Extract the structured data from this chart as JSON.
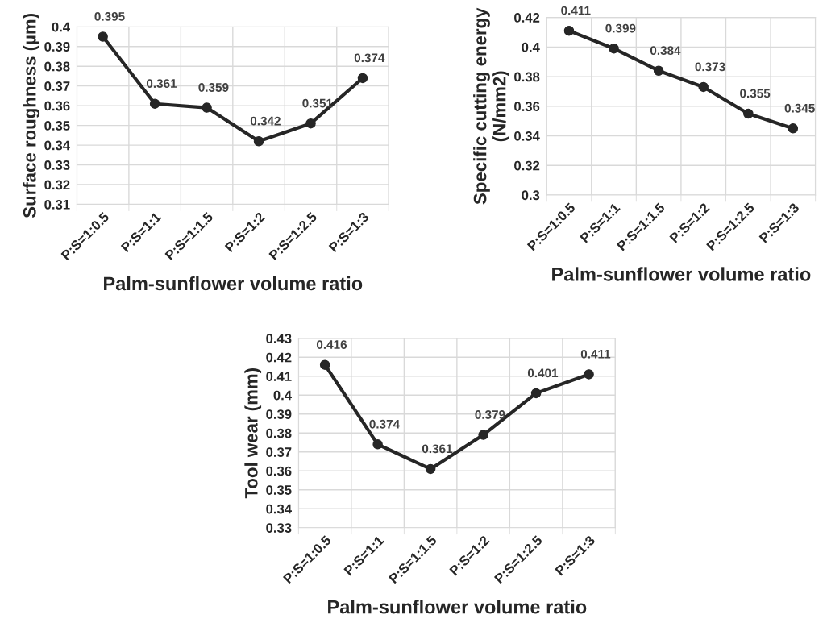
{
  "chart_data": [
    {
      "type": "line",
      "xlabel": "Palm-sunflower volume ratio",
      "ylabel": "Surface roughness (µm)",
      "categories": [
        "P:S=1:0.5",
        "P:S=1:1",
        "P:S=1:1.5",
        "P:S=1:2",
        "P:S=1:2.5",
        "P:S=1:3"
      ],
      "series": [
        {
          "color": "#262626",
          "values": [
            0.395,
            0.361,
            0.359,
            0.342,
            0.351,
            0.374
          ]
        }
      ],
      "ylim": [
        0.31,
        0.4
      ],
      "yticks": [
        0.31,
        0.32,
        0.33,
        0.34,
        0.35,
        0.36,
        0.37,
        0.38,
        0.39,
        0.4
      ],
      "grid": true,
      "marker": "circle",
      "line_style": "solid",
      "data_labels": true
    },
    {
      "type": "line",
      "xlabel": "Palm-sunflower volume ratio",
      "ylabel": "Specific cutting energy\n(N/mm2)",
      "categories": [
        "P:S=1:0.5",
        "P:S=1:1",
        "P:S=1:1.5",
        "P:S=1:2",
        "P:S=1:2.5",
        "P:S=1:3"
      ],
      "series": [
        {
          "color": "#262626",
          "values": [
            0.411,
            0.399,
            0.384,
            0.373,
            0.355,
            0.345
          ]
        }
      ],
      "ylim": [
        0.3,
        0.42
      ],
      "yticks": [
        0.3,
        0.32,
        0.34,
        0.36,
        0.38,
        0.4,
        0.42
      ],
      "grid": true,
      "marker": "circle",
      "line_style": "solid",
      "data_labels": true
    },
    {
      "type": "line",
      "xlabel": "Palm-sunflower volume ratio",
      "ylabel": "Tool wear (mm)",
      "categories": [
        "P:S=1:0.5",
        "P:S=1:1",
        "P:S=1:1.5",
        "P:S=1:2",
        "P:S=1:2.5",
        "P:S=1:3"
      ],
      "series": [
        {
          "color": "#262626",
          "values": [
            0.416,
            0.374,
            0.361,
            0.379,
            0.401,
            0.411
          ]
        }
      ],
      "ylim": [
        0.33,
        0.43
      ],
      "yticks": [
        0.33,
        0.34,
        0.35,
        0.36,
        0.37,
        0.38,
        0.39,
        0.4,
        0.41,
        0.42,
        0.43
      ],
      "grid": true,
      "marker": "circle",
      "line_style": "solid",
      "data_labels": true
    }
  ]
}
